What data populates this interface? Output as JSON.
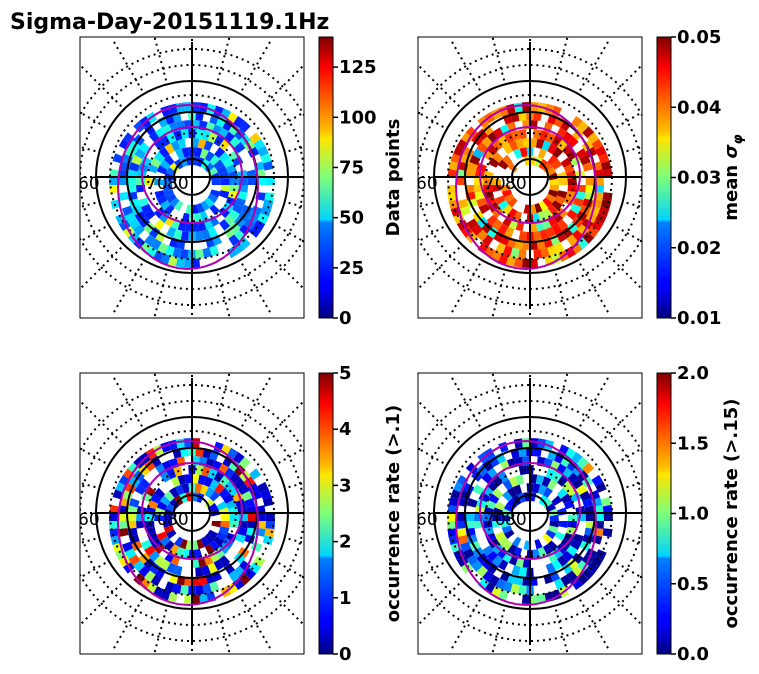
{
  "figure": {
    "title": "Sigma-Day-20151119.1Hz"
  },
  "colors": {
    "axis_line": "#000000",
    "magenta_oval": "#b000b0",
    "background": "#ffffff"
  },
  "colormap": "jet",
  "chart_data": [
    {
      "type": "heatmap",
      "projection": "polar",
      "panel": "top-left",
      "lat_labels": [
        "60",
        "70",
        "80"
      ],
      "colorbar": {
        "label": "Data points",
        "range": [
          0,
          140
        ],
        "ticks": [
          "0",
          "25",
          "50",
          "75",
          "100",
          "125"
        ],
        "tick_values": [
          0,
          25,
          50,
          75,
          100,
          125
        ]
      }
    },
    {
      "type": "heatmap",
      "projection": "polar",
      "panel": "top-right",
      "lat_labels": [
        "60",
        "70",
        "80"
      ],
      "colorbar": {
        "label": "mean σ_φ",
        "label_main": "mean ",
        "label_sym": "σ",
        "label_sub": "φ",
        "range": [
          0.01,
          0.05
        ],
        "ticks": [
          "0.01",
          "0.02",
          "0.03",
          "0.04",
          "0.05"
        ],
        "tick_values": [
          0.01,
          0.02,
          0.03,
          0.04,
          0.05
        ]
      }
    },
    {
      "type": "heatmap",
      "projection": "polar",
      "panel": "bottom-left",
      "lat_labels": [
        "60",
        "70",
        "80"
      ],
      "colorbar": {
        "label": "occurrence rate (>.1)",
        "range": [
          0,
          5
        ],
        "ticks": [
          "0",
          "1",
          "2",
          "3",
          "4",
          "5"
        ],
        "tick_values": [
          0,
          1,
          2,
          3,
          4,
          5
        ]
      }
    },
    {
      "type": "heatmap",
      "projection": "polar",
      "panel": "bottom-right",
      "lat_labels": [
        "60",
        "70",
        "80"
      ],
      "colorbar": {
        "label": "occurrence rate (>.15)",
        "range": [
          0,
          2
        ],
        "ticks": [
          "0.0",
          "0.5",
          "1.0",
          "1.5",
          "2.0"
        ],
        "tick_values": [
          0,
          0.5,
          1.0,
          1.5,
          2.0
        ]
      }
    }
  ]
}
